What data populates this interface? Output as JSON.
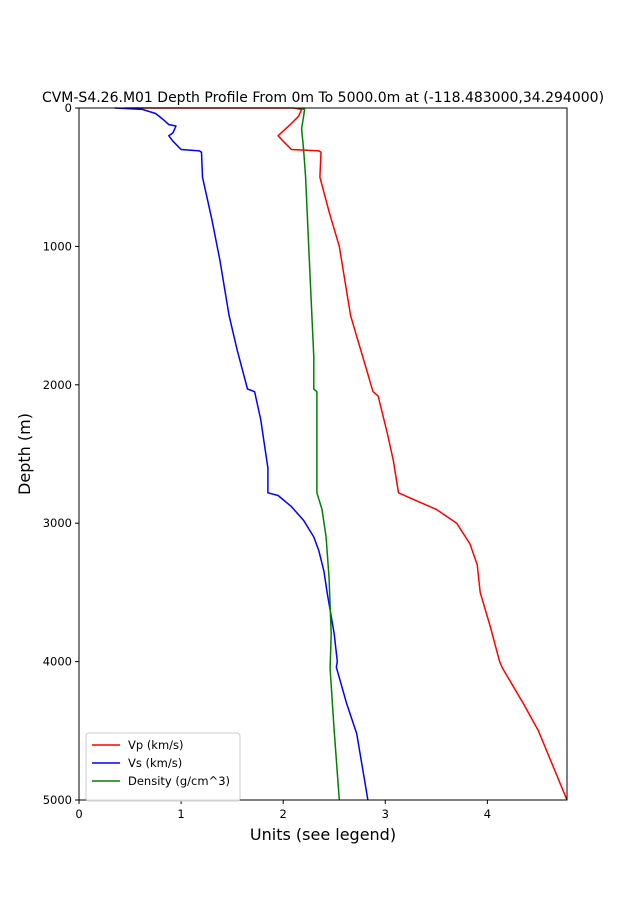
{
  "chart_data": {
    "type": "line",
    "title": "CVM-S4.26.M01 Depth Profile From 0m To 5000.0m at (-118.483000,34.294000)",
    "xlabel": "Units (see legend)",
    "ylabel": "Depth (m)",
    "xlim": [
      0,
      4.78
    ],
    "ylim": [
      0,
      5000
    ],
    "y_inverted": true,
    "x_ticks": [
      "0",
      "1",
      "2",
      "3",
      "4"
    ],
    "y_ticks": [
      "0",
      "1000",
      "2000",
      "3000",
      "4000",
      "5000"
    ],
    "grid": false,
    "legend_position": "lower-left",
    "series": [
      {
        "name": "Vp (km/s)",
        "color": "#ff0000",
        "points": [
          [
            0.45,
            0
          ],
          [
            2.1,
            0
          ],
          [
            2.18,
            10
          ],
          [
            2.15,
            60
          ],
          [
            2.07,
            120
          ],
          [
            1.98,
            180
          ],
          [
            1.95,
            200
          ],
          [
            2.0,
            240
          ],
          [
            2.08,
            300
          ],
          [
            2.35,
            310
          ],
          [
            2.37,
            320
          ],
          [
            2.36,
            500
          ],
          [
            2.45,
            750
          ],
          [
            2.55,
            1000
          ],
          [
            2.66,
            1500
          ],
          [
            2.72,
            1650
          ],
          [
            2.8,
            1850
          ],
          [
            2.88,
            2050
          ],
          [
            2.93,
            2080
          ],
          [
            3.02,
            2350
          ],
          [
            3.08,
            2550
          ],
          [
            3.13,
            2780
          ],
          [
            3.25,
            2820
          ],
          [
            3.5,
            2900
          ],
          [
            3.7,
            3000
          ],
          [
            3.83,
            3150
          ],
          [
            3.9,
            3300
          ],
          [
            3.93,
            3500
          ],
          [
            4.03,
            3750
          ],
          [
            4.12,
            4000
          ],
          [
            4.15,
            4050
          ],
          [
            4.35,
            4300
          ],
          [
            4.5,
            4500
          ],
          [
            4.78,
            5000
          ]
        ]
      },
      {
        "name": "Vs (km/s)",
        "color": "#0000ff",
        "points": [
          [
            0.35,
            0
          ],
          [
            0.62,
            10
          ],
          [
            0.75,
            40
          ],
          [
            0.82,
            80
          ],
          [
            0.88,
            120
          ],
          [
            0.95,
            130
          ],
          [
            0.92,
            180
          ],
          [
            0.88,
            200
          ],
          [
            0.92,
            240
          ],
          [
            1.0,
            300
          ],
          [
            1.18,
            310
          ],
          [
            1.2,
            320
          ],
          [
            1.21,
            500
          ],
          [
            1.3,
            800
          ],
          [
            1.38,
            1100
          ],
          [
            1.47,
            1500
          ],
          [
            1.55,
            1750
          ],
          [
            1.65,
            2030
          ],
          [
            1.72,
            2050
          ],
          [
            1.78,
            2250
          ],
          [
            1.82,
            2450
          ],
          [
            1.85,
            2600
          ],
          [
            1.85,
            2780
          ],
          [
            1.95,
            2800
          ],
          [
            2.08,
            2880
          ],
          [
            2.2,
            2980
          ],
          [
            2.3,
            3100
          ],
          [
            2.35,
            3200
          ],
          [
            2.4,
            3350
          ],
          [
            2.43,
            3500
          ],
          [
            2.5,
            3800
          ],
          [
            2.53,
            4000
          ],
          [
            2.52,
            4040
          ],
          [
            2.62,
            4300
          ],
          [
            2.72,
            4520
          ],
          [
            2.83,
            5000
          ]
        ]
      },
      {
        "name": "Density (g/cm^3)",
        "color": "#008000",
        "points": [
          [
            2.15,
            0
          ],
          [
            2.21,
            10
          ],
          [
            2.2,
            60
          ],
          [
            2.18,
            150
          ],
          [
            2.2,
            300
          ],
          [
            2.22,
            500
          ],
          [
            2.25,
            1000
          ],
          [
            2.3,
            1800
          ],
          [
            2.3,
            2030
          ],
          [
            2.33,
            2050
          ],
          [
            2.33,
            2780
          ],
          [
            2.38,
            2900
          ],
          [
            2.42,
            3100
          ],
          [
            2.45,
            3400
          ],
          [
            2.47,
            3800
          ],
          [
            2.46,
            4050
          ],
          [
            2.5,
            4500
          ],
          [
            2.55,
            5000
          ]
        ]
      }
    ]
  }
}
